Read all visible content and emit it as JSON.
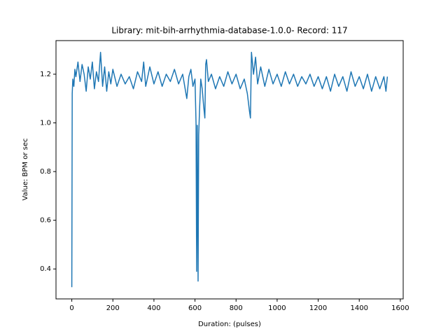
{
  "chart_data": {
    "type": "line",
    "title": "Library: mit-bih-arrhythmia-database-1.0.0- Record: 117",
    "xlabel": "Duration: (pulses)",
    "ylabel": "Value: BPM or sec",
    "xlim": [
      -77,
      1614
    ],
    "ylim": [
      0.277,
      1.338
    ],
    "xticks": [
      0,
      200,
      400,
      600,
      800,
      1000,
      1200,
      1400,
      1600
    ],
    "yticks": [
      0.4,
      0.6,
      0.8,
      {
        "value": 1,
        "label": "1.0"
      },
      1.2
    ],
    "series": [
      {
        "color": "#1f77b4",
        "x": [
          0,
          2,
          5,
          10,
          15,
          20,
          30,
          40,
          50,
          60,
          70,
          80,
          90,
          100,
          110,
          120,
          130,
          140,
          150,
          160,
          170,
          180,
          190,
          200,
          220,
          240,
          260,
          280,
          300,
          320,
          340,
          350,
          360,
          380,
          400,
          420,
          440,
          460,
          480,
          500,
          520,
          540,
          560,
          570,
          580,
          590,
          600,
          605,
          608,
          611,
          615,
          618,
          622,
          628,
          635,
          642,
          648,
          652,
          656,
          665,
          680,
          700,
          720,
          740,
          760,
          780,
          800,
          820,
          840,
          855,
          865,
          870,
          875,
          885,
          895,
          905,
          920,
          940,
          960,
          980,
          1000,
          1020,
          1040,
          1060,
          1080,
          1100,
          1120,
          1140,
          1160,
          1180,
          1200,
          1220,
          1240,
          1260,
          1280,
          1300,
          1320,
          1340,
          1360,
          1380,
          1400,
          1420,
          1440,
          1460,
          1480,
          1500,
          1520,
          1530,
          1537
        ],
        "values": [
          0.325,
          1.12,
          1.18,
          1.15,
          1.22,
          1.19,
          1.25,
          1.17,
          1.24,
          1.2,
          1.13,
          1.23,
          1.18,
          1.25,
          1.14,
          1.21,
          1.17,
          1.29,
          1.15,
          1.23,
          1.13,
          1.21,
          1.16,
          1.22,
          1.15,
          1.2,
          1.16,
          1.19,
          1.14,
          1.21,
          1.17,
          1.25,
          1.15,
          1.23,
          1.16,
          1.21,
          1.15,
          1.2,
          1.17,
          1.22,
          1.16,
          1.2,
          1.1,
          1.19,
          1.22,
          1.15,
          1.18,
          1.0,
          0.39,
          0.99,
          0.35,
          0.95,
          1.05,
          1.18,
          1.14,
          1.07,
          1.02,
          1.24,
          1.26,
          1.17,
          1.2,
          1.14,
          1.19,
          1.15,
          1.21,
          1.16,
          1.2,
          1.14,
          1.18,
          1.12,
          1.05,
          1.02,
          1.29,
          1.2,
          1.27,
          1.16,
          1.23,
          1.15,
          1.22,
          1.16,
          1.2,
          1.15,
          1.21,
          1.16,
          1.2,
          1.15,
          1.19,
          1.16,
          1.2,
          1.15,
          1.19,
          1.14,
          1.19,
          1.13,
          1.2,
          1.15,
          1.19,
          1.13,
          1.21,
          1.15,
          1.19,
          1.14,
          1.2,
          1.13,
          1.19,
          1.14,
          1.19,
          1.13,
          1.19
        ]
      }
    ]
  }
}
